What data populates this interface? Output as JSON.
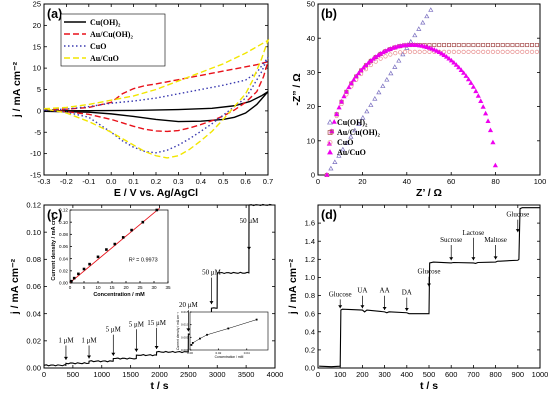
{
  "chart_data": [
    {
      "panel": "(a)",
      "type": "line",
      "xlabel": "E / V vs. Ag/AgCl",
      "ylabel": "j / mA cm⁻²",
      "xlim": [
        -0.3,
        0.7
      ],
      "ylim": [
        -15,
        25
      ],
      "xticks": [
        "-0.3",
        "-0.2",
        "-0.1",
        "0.0",
        "0.1",
        "0.2",
        "0.3",
        "0.4",
        "0.5",
        "0.6",
        "0.7"
      ],
      "yticks": [
        "-15",
        "-10",
        "-5",
        "0",
        "5",
        "10",
        "15",
        "20",
        "25"
      ],
      "legend_position": "top-left",
      "series": [
        {
          "name": "Cu(OH)₂",
          "color": "#000000",
          "dash": "solid",
          "forward": [
            [
              -0.3,
              0
            ],
            [
              -0.1,
              0.05
            ],
            [
              0.1,
              0.1
            ],
            [
              0.3,
              0.3
            ],
            [
              0.45,
              0.6
            ],
            [
              0.55,
              1.2
            ],
            [
              0.62,
              2.2
            ],
            [
              0.67,
              3.5
            ],
            [
              0.7,
              4.5
            ]
          ],
          "reverse": [
            [
              0.7,
              4.5
            ],
            [
              0.65,
              1.5
            ],
            [
              0.6,
              -0.5
            ],
            [
              0.55,
              -1.5
            ],
            [
              0.5,
              -2.0
            ],
            [
              0.4,
              -2.4
            ],
            [
              0.3,
              -2.5
            ],
            [
              0.2,
              -2.0
            ],
            [
              0.1,
              -1.3
            ],
            [
              0.0,
              -0.7
            ],
            [
              -0.1,
              -0.3
            ],
            [
              -0.3,
              -0.1
            ]
          ]
        },
        {
          "name": "Au/Cu(OH)₂",
          "color": "#e8111a",
          "dash": "6,3",
          "forward": [
            [
              -0.3,
              0.3
            ],
            [
              -0.2,
              0.4
            ],
            [
              -0.1,
              0.8
            ],
            [
              0.0,
              2.0
            ],
            [
              0.05,
              4.0
            ],
            [
              0.1,
              5.2
            ],
            [
              0.15,
              5.9
            ],
            [
              0.2,
              6.3
            ],
            [
              0.3,
              7.3
            ],
            [
              0.4,
              8.3
            ],
            [
              0.5,
              9.3
            ],
            [
              0.6,
              10.3
            ],
            [
              0.65,
              10.8
            ],
            [
              0.7,
              11.5
            ]
          ],
          "reverse": [
            [
              0.7,
              11.5
            ],
            [
              0.68,
              8.0
            ],
            [
              0.65,
              4.5
            ],
            [
              0.6,
              2.0
            ],
            [
              0.55,
              0.2
            ],
            [
              0.5,
              -1.2
            ],
            [
              0.45,
              -2.3
            ],
            [
              0.4,
              -3.2
            ],
            [
              0.35,
              -4.0
            ],
            [
              0.3,
              -4.6
            ],
            [
              0.25,
              -4.8
            ],
            [
              0.2,
              -4.7
            ],
            [
              0.15,
              -4.3
            ],
            [
              0.1,
              -3.6
            ],
            [
              0.05,
              -2.8
            ],
            [
              0.0,
              -2.0
            ],
            [
              -0.1,
              -0.8
            ],
            [
              -0.2,
              -0.2
            ],
            [
              -0.3,
              0.3
            ]
          ]
        },
        {
          "name": "CuO",
          "color": "#3a3ab0",
          "dash": "1.5,2.5",
          "forward": [
            [
              -0.3,
              0.2
            ],
            [
              -0.2,
              0.4
            ],
            [
              -0.1,
              1.0
            ],
            [
              0.0,
              1.8
            ],
            [
              0.1,
              2.3
            ],
            [
              0.2,
              3.0
            ],
            [
              0.3,
              4.0
            ],
            [
              0.4,
              5.0
            ],
            [
              0.5,
              6.0
            ],
            [
              0.6,
              7.2
            ],
            [
              0.65,
              9.0
            ],
            [
              0.7,
              12.5
            ]
          ],
          "reverse": [
            [
              0.7,
              12.5
            ],
            [
              0.67,
              9.0
            ],
            [
              0.63,
              5.5
            ],
            [
              0.6,
              3.0
            ],
            [
              0.55,
              1.0
            ],
            [
              0.5,
              -1.0
            ],
            [
              0.45,
              -3.0
            ],
            [
              0.4,
              -4.8
            ],
            [
              0.35,
              -6.5
            ],
            [
              0.3,
              -8.0
            ],
            [
              0.25,
              -9.2
            ],
            [
              0.2,
              -9.8
            ],
            [
              0.15,
              -9.5
            ],
            [
              0.1,
              -8.5
            ],
            [
              0.05,
              -7.0
            ],
            [
              0.0,
              -5.0
            ],
            [
              -0.1,
              -1.5
            ],
            [
              -0.2,
              -0.3
            ],
            [
              -0.3,
              0.2
            ]
          ]
        },
        {
          "name": "Au/CuO",
          "color": "#f2e600",
          "dash": "6,3",
          "forward": [
            [
              -0.3,
              0.5
            ],
            [
              -0.2,
              0.8
            ],
            [
              -0.1,
              1.5
            ],
            [
              0.0,
              2.5
            ],
            [
              0.1,
              3.5
            ],
            [
              0.2,
              5.0
            ],
            [
              0.3,
              7.0
            ],
            [
              0.4,
              9.0
            ],
            [
              0.5,
              11.0
            ],
            [
              0.6,
              13.5
            ],
            [
              0.65,
              15.0
            ],
            [
              0.7,
              16.5
            ]
          ],
          "reverse": [
            [
              0.7,
              16.5
            ],
            [
              0.67,
              12.0
            ],
            [
              0.63,
              7.0
            ],
            [
              0.6,
              4.0
            ],
            [
              0.55,
              1.0
            ],
            [
              0.5,
              -2.0
            ],
            [
              0.45,
              -4.8
            ],
            [
              0.4,
              -7.0
            ],
            [
              0.35,
              -9.0
            ],
            [
              0.3,
              -10.5
            ],
            [
              0.25,
              -11.0
            ],
            [
              0.2,
              -10.5
            ],
            [
              0.15,
              -9.5
            ],
            [
              0.1,
              -8.0
            ],
            [
              0.05,
              -6.5
            ],
            [
              0.0,
              -5.0
            ],
            [
              -0.1,
              -2.5
            ],
            [
              -0.2,
              -0.5
            ],
            [
              -0.3,
              0.5
            ]
          ]
        }
      ]
    },
    {
      "panel": "(b)",
      "type": "scatter",
      "xlabel": "Z’ / Ω",
      "ylabel": "-Z” / Ω",
      "xlim": [
        0,
        100
      ],
      "ylim": [
        0,
        50
      ],
      "xticks": [
        "0",
        "20",
        "40",
        "60",
        "80",
        "100"
      ],
      "yticks": [
        "0",
        "10",
        "20",
        "30",
        "40",
        "50"
      ],
      "legend_position": "bottom-left",
      "series": [
        {
          "name": "Cu(OH)₂",
          "color": "#7a6fc0",
          "marker": "triangle-open",
          "shape": "line",
          "x0": 4,
          "slope": 1.03,
          "xmax": 52,
          "step": 1.8
        },
        {
          "name": "Au/Cu(OH)₂",
          "color": "#a54b4b",
          "marker": "square-open",
          "shape": "arc",
          "x0": 4,
          "R": 38,
          "xmax": 100,
          "step": 2.2
        },
        {
          "name": "CuO",
          "color": "#e89090",
          "marker": "circle-open",
          "shape": "arc",
          "x0": 4,
          "R": 36,
          "xmax": 100,
          "step": 2.2
        },
        {
          "name": "Au/CuO",
          "color": "#ee00ee",
          "marker": "triangle-filled",
          "shape": "semicircle",
          "x0": 4,
          "R": 38,
          "xmax": 80,
          "step": 1.1
        }
      ]
    },
    {
      "panel": "(c)",
      "type": "line",
      "xlabel": "t / s",
      "ylabel": "j / mA cm⁻²",
      "xlim": [
        0,
        4000
      ],
      "ylim": [
        0,
        0.12
      ],
      "xticks": [
        "0",
        "500",
        "1000",
        "1500",
        "2000",
        "2500",
        "3000",
        "3500",
        "4000"
      ],
      "yticks": [
        "0.00",
        "0.02",
        "0.04",
        "0.06",
        "0.08",
        "0.10",
        "0.12"
      ],
      "series": [
        {
          "name": "",
          "color": "#000000",
          "steps": [
            [
              0,
              0.002
            ],
            [
              380,
              0.0035
            ],
            [
              780,
              0.005
            ],
            [
              1200,
              0.007
            ],
            [
              1600,
              0.0095
            ],
            [
              1950,
              0.0118
            ],
            [
              2500,
              0.025
            ],
            [
              2900,
              0.044
            ],
            [
              3000,
              0.07
            ],
            [
              3550,
              0.12
            ],
            [
              3950,
              0.12
            ]
          ]
        }
      ],
      "annotations": [
        {
          "text": "1 μM",
          "x": 380,
          "y": 0.006,
          "label_y": 0.018
        },
        {
          "text": "1 μM",
          "x": 780,
          "y": 0.007,
          "label_y": 0.018
        },
        {
          "text": "5 μM",
          "x": 1200,
          "y": 0.009,
          "label_y": 0.026
        },
        {
          "text": "5 μM",
          "x": 1600,
          "y": 0.012,
          "label_y": 0.03
        },
        {
          "text": "15 μM",
          "x": 1950,
          "y": 0.014,
          "label_y": 0.031
        },
        {
          "text": "20 μM",
          "x": 2500,
          "y": 0.027,
          "label_y": 0.044
        },
        {
          "text": "50 μM",
          "x": 2900,
          "y": 0.047,
          "label_y": 0.068
        },
        {
          "text": "50 μM",
          "x": 3550,
          "y": 0.087,
          "label_y": 0.106
        }
      ],
      "inset_calibration": {
        "xlabel": "Concentration / mM",
        "ylabel": "Current density / mA cm⁻²",
        "xlim": [
          0,
          35
        ],
        "ylim": [
          0,
          0.12
        ],
        "xticks": [
          "0",
          "5",
          "10",
          "15",
          "20",
          "25",
          "30",
          "35"
        ],
        "yticks": [
          "0.00",
          "0.02",
          "0.04",
          "0.06",
          "0.08",
          "0.10",
          "0.12"
        ],
        "r2": "R² = 0.9973",
        "points": [
          [
            0.5,
            0.003
          ],
          [
            1.5,
            0.008
          ],
          [
            3,
            0.015
          ],
          [
            5,
            0.023
          ],
          [
            7,
            0.031
          ],
          [
            10,
            0.043
          ],
          [
            13,
            0.055
          ],
          [
            16,
            0.064
          ],
          [
            19,
            0.075
          ],
          [
            22,
            0.087
          ],
          [
            26,
            0.1
          ],
          [
            31,
            0.12
          ]
        ],
        "fit": [
          [
            0,
            0.0005
          ],
          [
            32,
            0.123
          ]
        ]
      },
      "inset_low": {
        "xlabel": "Concentration / mM",
        "ylabel": "Current density / mA cm⁻²",
        "xlim": [
          0,
          0.055
        ],
        "ylim": [
          0,
          0.015
        ],
        "xticks": [
          "0.00",
          "0.02",
          "0.04"
        ],
        "yticks": [
          "0.000",
          "0.005",
          "0.010",
          "0.015"
        ],
        "points": [
          [
            0.001,
            0.002
          ],
          [
            0.002,
            0.0028
          ],
          [
            0.007,
            0.0045
          ],
          [
            0.012,
            0.006
          ],
          [
            0.027,
            0.0085
          ],
          [
            0.047,
            0.012
          ]
        ]
      }
    },
    {
      "panel": "(d)",
      "type": "line",
      "xlabel": "t / s",
      "ylabel": "j / mA cm⁻²",
      "xlim": [
        0,
        1000
      ],
      "ylim": [
        0,
        1.8
      ],
      "xticks": [
        "0",
        "100",
        "200",
        "300",
        "400",
        "500",
        "600",
        "700",
        "800",
        "900",
        "1000"
      ],
      "yticks": [
        "0.0",
        "0.2",
        "0.4",
        "0.6",
        "0.8",
        "1.0",
        "1.2",
        "1.4",
        "1.6"
      ],
      "series": [
        {
          "name": "",
          "color": "#000000",
          "trace": [
            [
              5,
              0.02
            ],
            [
              60,
              0.015
            ],
            [
              100,
              0.02
            ],
            [
              103,
              0.64
            ],
            [
              110,
              0.65
            ],
            [
              150,
              0.645
            ],
            [
              200,
              0.64
            ],
            [
              210,
              0.62
            ],
            [
              220,
              0.64
            ],
            [
              300,
              0.62
            ],
            [
              310,
              0.61
            ],
            [
              320,
              0.62
            ],
            [
              400,
              0.61
            ],
            [
              410,
              0.6
            ],
            [
              420,
              0.6
            ],
            [
              495,
              0.6
            ],
            [
              500,
              0.6
            ],
            [
              503,
              1.16
            ],
            [
              520,
              1.17
            ],
            [
              600,
              1.16
            ],
            [
              610,
              1.165
            ],
            [
              700,
              1.16
            ],
            [
              710,
              1.155
            ],
            [
              720,
              1.165
            ],
            [
              800,
              1.17
            ],
            [
              810,
              1.18
            ],
            [
              820,
              1.18
            ],
            [
              900,
              1.19
            ],
            [
              905,
              1.2
            ],
            [
              910,
              1.76
            ],
            [
              920,
              1.77
            ],
            [
              1000,
              1.77
            ]
          ]
        }
      ],
      "annotations": [
        {
          "text": "Glucose",
          "x": 100,
          "y": 0.66,
          "label_y": 0.78
        },
        {
          "text": "UA",
          "x": 200,
          "y": 0.66,
          "label_y": 0.82
        },
        {
          "text": "AA",
          "x": 300,
          "y": 0.64,
          "label_y": 0.82
        },
        {
          "text": "DA",
          "x": 400,
          "y": 0.63,
          "label_y": 0.8
        },
        {
          "text": "Glucose",
          "x": 500,
          "y": 0.9,
          "label_y": 1.03
        },
        {
          "text": "Sucrose",
          "x": 600,
          "y": 1.19,
          "label_y": 1.38
        },
        {
          "text": "Lactose",
          "x": 700,
          "y": 1.19,
          "label_y": 1.46
        },
        {
          "text": "Maltose",
          "x": 800,
          "y": 1.2,
          "label_y": 1.38
        },
        {
          "text": "Glucose",
          "x": 900,
          "y": 1.5,
          "label_y": 1.66
        }
      ]
    }
  ]
}
